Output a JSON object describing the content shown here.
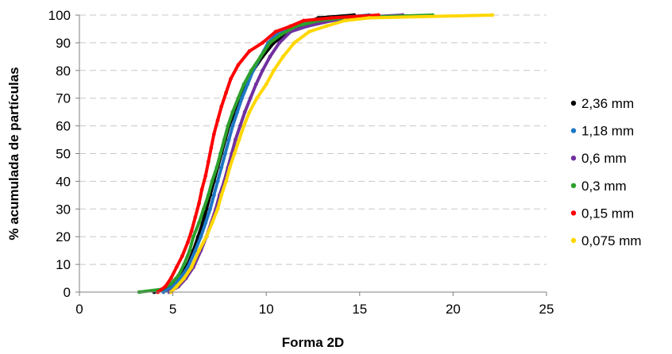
{
  "chart_data": {
    "type": "scatter",
    "xlabel": "Forma 2D",
    "ylabel": "% acumulada de partículas",
    "xlim": [
      0,
      25
    ],
    "ylim": [
      0,
      100
    ],
    "x_ticks": [
      "0",
      "5",
      "10",
      "15",
      "20",
      "25"
    ],
    "y_ticks": [
      "0",
      "10",
      "20",
      "30",
      "40",
      "50",
      "60",
      "70",
      "80",
      "90",
      "100"
    ],
    "grid": "horizontal-dashed",
    "legend_position": "right",
    "series": [
      {
        "name": "2,36 mm",
        "color": "#000000",
        "points": [
          [
            4.0,
            0
          ],
          [
            4.6,
            1
          ],
          [
            5.0,
            3
          ],
          [
            5.4,
            6
          ],
          [
            5.8,
            10
          ],
          [
            6.1,
            15
          ],
          [
            6.35,
            20
          ],
          [
            6.6,
            25
          ],
          [
            6.8,
            30
          ],
          [
            7.0,
            35
          ],
          [
            7.2,
            40
          ],
          [
            7.4,
            45
          ],
          [
            7.6,
            50
          ],
          [
            7.8,
            55
          ],
          [
            8.0,
            60
          ],
          [
            8.3,
            65
          ],
          [
            8.6,
            70
          ],
          [
            8.9,
            75
          ],
          [
            9.3,
            80
          ],
          [
            9.8,
            85
          ],
          [
            10.4,
            90
          ],
          [
            11.0,
            93
          ],
          [
            11.8,
            96
          ],
          [
            12.8,
            99
          ],
          [
            14.7,
            100
          ]
        ]
      },
      {
        "name": "1,18 mm",
        "color": "#1f77c4",
        "points": [
          [
            4.5,
            0
          ],
          [
            5.0,
            2
          ],
          [
            5.4,
            5
          ],
          [
            5.8,
            9
          ],
          [
            6.2,
            15
          ],
          [
            6.5,
            20
          ],
          [
            6.75,
            25
          ],
          [
            7.0,
            30
          ],
          [
            7.2,
            35
          ],
          [
            7.4,
            40
          ],
          [
            7.6,
            45
          ],
          [
            7.8,
            50
          ],
          [
            8.0,
            55
          ],
          [
            8.2,
            60
          ],
          [
            8.45,
            65
          ],
          [
            8.7,
            70
          ],
          [
            9.0,
            75
          ],
          [
            9.3,
            80
          ],
          [
            9.7,
            85
          ],
          [
            10.1,
            90
          ],
          [
            10.7,
            94
          ],
          [
            11.5,
            96
          ],
          [
            12.7,
            98
          ],
          [
            13.8,
            99
          ],
          [
            15.5,
            100
          ]
        ]
      },
      {
        "name": "0,6 mm",
        "color": "#7030a0",
        "points": [
          [
            4.8,
            0
          ],
          [
            5.3,
            2
          ],
          [
            5.7,
            5
          ],
          [
            6.1,
            9
          ],
          [
            6.5,
            15
          ],
          [
            6.8,
            20
          ],
          [
            7.05,
            25
          ],
          [
            7.3,
            30
          ],
          [
            7.5,
            35
          ],
          [
            7.75,
            40
          ],
          [
            7.95,
            45
          ],
          [
            8.15,
            50
          ],
          [
            8.35,
            55
          ],
          [
            8.6,
            60
          ],
          [
            8.85,
            65
          ],
          [
            9.15,
            70
          ],
          [
            9.45,
            75
          ],
          [
            9.8,
            80
          ],
          [
            10.2,
            85
          ],
          [
            10.7,
            90
          ],
          [
            11.3,
            94
          ],
          [
            12.2,
            96
          ],
          [
            13.5,
            98
          ],
          [
            14.6,
            99
          ],
          [
            17.3,
            100
          ]
        ]
      },
      {
        "name": "0,3 mm",
        "color": "#2ca02c",
        "points": [
          [
            3.2,
            0
          ],
          [
            4.4,
            1
          ],
          [
            4.9,
            3
          ],
          [
            5.3,
            6
          ],
          [
            5.6,
            10
          ],
          [
            5.9,
            15
          ],
          [
            6.1,
            20
          ],
          [
            6.4,
            25
          ],
          [
            6.65,
            30
          ],
          [
            6.9,
            35
          ],
          [
            7.1,
            40
          ],
          [
            7.35,
            45
          ],
          [
            7.55,
            50
          ],
          [
            7.75,
            55
          ],
          [
            7.95,
            60
          ],
          [
            8.2,
            65
          ],
          [
            8.5,
            70
          ],
          [
            8.8,
            75
          ],
          [
            9.2,
            80
          ],
          [
            9.7,
            85
          ],
          [
            10.2,
            90
          ],
          [
            10.8,
            93
          ],
          [
            11.6,
            96
          ],
          [
            12.8,
            98
          ],
          [
            14.2,
            99
          ],
          [
            18.9,
            100
          ]
        ]
      },
      {
        "name": "0,15 mm",
        "color": "#ff0000",
        "points": [
          [
            4.2,
            0
          ],
          [
            4.6,
            2
          ],
          [
            4.9,
            5
          ],
          [
            5.2,
            9
          ],
          [
            5.5,
            13
          ],
          [
            5.8,
            18
          ],
          [
            6.0,
            22
          ],
          [
            6.2,
            27
          ],
          [
            6.4,
            32
          ],
          [
            6.55,
            37
          ],
          [
            6.75,
            42
          ],
          [
            6.9,
            47
          ],
          [
            7.05,
            52
          ],
          [
            7.2,
            57
          ],
          [
            7.4,
            62
          ],
          [
            7.6,
            67
          ],
          [
            7.85,
            72
          ],
          [
            8.1,
            77
          ],
          [
            8.5,
            82
          ],
          [
            9.1,
            87
          ],
          [
            9.8,
            90
          ],
          [
            10.5,
            94
          ],
          [
            11.3,
            96
          ],
          [
            12.0,
            98
          ],
          [
            13.5,
            99
          ],
          [
            16.0,
            100
          ]
        ]
      },
      {
        "name": "0,075 mm",
        "color": "#ffd700",
        "points": [
          [
            4.9,
            0
          ],
          [
            5.2,
            2
          ],
          [
            5.6,
            5
          ],
          [
            6.0,
            9
          ],
          [
            6.4,
            15
          ],
          [
            6.8,
            20
          ],
          [
            7.1,
            25
          ],
          [
            7.4,
            30
          ],
          [
            7.6,
            35
          ],
          [
            7.85,
            40
          ],
          [
            8.05,
            45
          ],
          [
            8.3,
            50
          ],
          [
            8.55,
            55
          ],
          [
            8.8,
            60
          ],
          [
            9.1,
            65
          ],
          [
            9.5,
            70
          ],
          [
            10.0,
            75
          ],
          [
            10.4,
            80
          ],
          [
            10.9,
            85
          ],
          [
            11.5,
            90
          ],
          [
            12.3,
            94
          ],
          [
            13.2,
            96
          ],
          [
            14.2,
            98
          ],
          [
            15.5,
            99
          ],
          [
            22.1,
            100
          ]
        ]
      }
    ]
  }
}
